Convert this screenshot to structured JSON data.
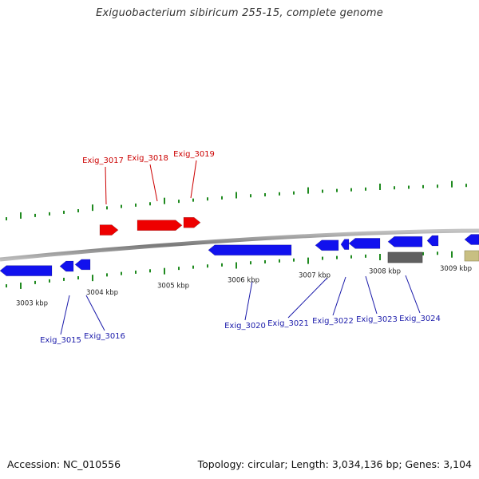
{
  "title": "Exiguobacterium sibiricum 255-15, complete genome",
  "footer": {
    "accession": "Accession: NC_010556",
    "summary": "Topology: circular; Length: 3,034,136 bp; Genes: 3,104"
  },
  "colors": {
    "forward_gene": "#ee0000",
    "forward_label": "#cc0000",
    "reverse_gene": "#1111ee",
    "reverse_label": "#1a1aaa",
    "other_feature_gray": "#606060",
    "other_feature_tan": "#c8bf82",
    "tick": "#1f8a1f",
    "backbone": "#8a8a8a"
  },
  "scale": {
    "labels": [
      "3003 kbp",
      "3004 kbp",
      "3005 kbp",
      "3006 kbp",
      "3007 kbp",
      "3008 kbp",
      "3009 kbp"
    ]
  },
  "genes": {
    "forward": [
      "Exig_3017",
      "Exig_3018",
      "Exig_3019"
    ],
    "reverse": [
      "Exig_3015",
      "Exig_3016",
      "Exig_3020",
      "Exig_3021",
      "Exig_3022",
      "Exig_3023",
      "Exig_3024"
    ]
  }
}
